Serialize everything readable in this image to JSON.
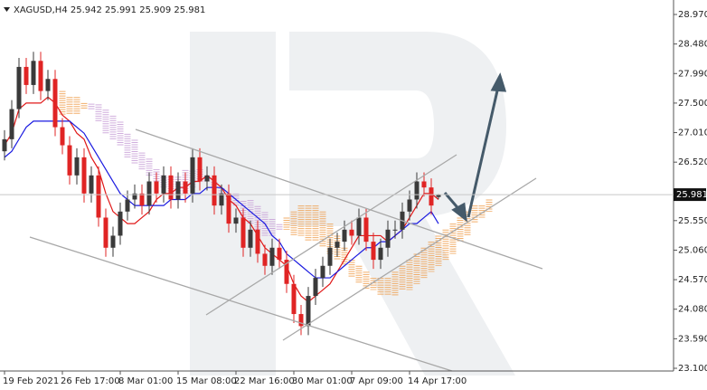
{
  "chart_data": {
    "type": "candlestick",
    "title": "XAGUSD,H4  25.942 25.991 25.909 25.981",
    "categories": [
      "19 Feb 2021",
      null,
      null,
      null,
      null,
      null,
      null,
      null,
      "26 Feb 17:00",
      null,
      null,
      null,
      null,
      null,
      null,
      null,
      "8 Mar 01:00",
      null,
      null,
      null,
      null,
      null,
      null,
      null,
      "15 Mar 08:00",
      null,
      null,
      null,
      null,
      null,
      null,
      null,
      "22 Mar 16:00",
      null,
      null,
      null,
      null,
      null,
      null,
      null,
      "30 Mar 01:00",
      null,
      null,
      null,
      null,
      null,
      null,
      null,
      "7 Apr 09:00",
      null,
      null,
      null,
      null,
      null,
      null,
      null,
      "14 Apr 17:00",
      null,
      null,
      null,
      null,
      null,
      null,
      null,
      null,
      null,
      null,
      null
    ],
    "open": [
      26.7,
      26.9,
      27.4,
      28.1,
      27.8,
      28.2,
      27.7,
      27.9,
      27.1,
      26.8,
      26.3,
      26.6,
      26.0,
      26.3,
      25.6,
      25.1,
      25.3,
      25.7,
      25.9,
      26.0,
      25.8,
      26.2,
      26.0,
      26.3,
      25.9,
      26.2,
      26.0,
      26.6,
      26.2,
      26.3,
      25.8,
      26.0,
      25.5,
      25.6,
      25.1,
      25.4,
      25.0,
      24.8,
      25.1,
      24.9,
      24.5,
      24.0,
      23.8,
      24.3,
      24.6,
      24.8,
      25.1,
      25.2,
      25.4,
      25.3,
      25.6,
      25.2,
      24.9,
      25.1,
      25.4,
      25.4,
      25.7,
      25.9,
      26.2,
      26.1,
      25.942,
      null,
      null,
      null,
      null,
      null,
      null,
      null
    ],
    "high": [
      27.05,
      27.55,
      28.25,
      28.25,
      28.35,
      28.35,
      28.05,
      28.05,
      27.25,
      26.95,
      26.75,
      26.75,
      26.45,
      26.45,
      25.75,
      25.45,
      25.85,
      26.05,
      26.15,
      26.15,
      26.35,
      26.35,
      26.45,
      26.45,
      26.35,
      26.35,
      26.75,
      26.75,
      26.45,
      26.45,
      26.15,
      26.15,
      25.75,
      25.75,
      25.55,
      25.55,
      25.15,
      25.25,
      25.25,
      25.05,
      24.65,
      24.15,
      24.45,
      24.75,
      24.95,
      25.25,
      25.35,
      25.55,
      25.55,
      25.75,
      25.75,
      25.35,
      25.25,
      25.55,
      25.55,
      25.85,
      26.05,
      26.35,
      26.35,
      26.25,
      25.991,
      null,
      null,
      null,
      null,
      null,
      null,
      null
    ],
    "low": [
      26.55,
      26.75,
      27.25,
      27.65,
      27.65,
      27.55,
      27.55,
      26.95,
      26.65,
      26.15,
      26.15,
      25.85,
      25.85,
      25.45,
      24.95,
      24.95,
      25.15,
      25.55,
      25.75,
      25.65,
      25.65,
      25.85,
      25.85,
      25.75,
      25.75,
      25.85,
      25.85,
      26.05,
      26.05,
      25.65,
      25.65,
      25.35,
      25.35,
      24.95,
      24.95,
      24.85,
      24.65,
      24.65,
      24.75,
      24.35,
      23.85,
      23.65,
      23.65,
      24.15,
      24.45,
      24.65,
      24.95,
      25.05,
      25.15,
      25.15,
      25.05,
      24.75,
      24.75,
      24.95,
      25.25,
      25.25,
      25.55,
      25.75,
      25.95,
      25.65,
      25.909,
      null,
      null,
      null,
      null,
      null,
      null,
      null
    ],
    "close": [
      26.9,
      27.4,
      28.1,
      27.8,
      28.2,
      27.7,
      27.9,
      27.1,
      26.8,
      26.3,
      26.6,
      26.0,
      26.3,
      25.6,
      25.1,
      25.3,
      25.7,
      25.9,
      26.0,
      25.8,
      26.2,
      26.0,
      26.3,
      25.9,
      26.2,
      26.0,
      26.6,
      26.2,
      26.3,
      25.8,
      26.0,
      25.5,
      25.6,
      25.1,
      25.4,
      25.0,
      24.8,
      25.1,
      24.9,
      24.5,
      24.0,
      23.8,
      24.3,
      24.6,
      24.8,
      25.1,
      25.2,
      25.4,
      25.3,
      25.6,
      25.2,
      24.9,
      25.1,
      25.4,
      25.4,
      25.7,
      25.9,
      26.2,
      26.1,
      25.8,
      25.981,
      null,
      null,
      null,
      null,
      null,
      null,
      null
    ],
    "up_color": "#3a3a3a",
    "down_color": "#e02424",
    "lines": [
      {
        "color": "#e01818",
        "values": [
          26.8,
          27.0,
          27.4,
          27.5,
          27.5,
          27.5,
          27.6,
          27.5,
          27.3,
          27.2,
          27.0,
          26.9,
          26.6,
          26.4,
          26.0,
          25.7,
          25.6,
          25.5,
          25.5,
          25.6,
          25.7,
          25.9,
          26.0,
          26.0,
          26.1,
          26.1,
          26.2,
          26.2,
          26.3,
          26.2,
          26.1,
          25.9,
          25.8,
          25.6,
          25.5,
          25.3,
          25.1,
          25.0,
          24.9,
          24.8,
          24.5,
          24.3,
          24.2,
          24.3,
          24.4,
          24.5,
          24.7,
          24.9,
          25.1,
          25.3,
          25.3,
          25.3,
          25.3,
          25.2,
          25.3,
          25.4,
          25.6,
          25.8,
          26.0,
          26.0,
          25.9,
          null,
          null,
          null,
          null,
          null,
          null,
          null
        ]
      },
      {
        "color": "#1a1ae0",
        "values": [
          26.6,
          26.7,
          26.9,
          27.1,
          27.2,
          27.2,
          27.2,
          27.2,
          27.2,
          27.2,
          27.1,
          27.0,
          26.8,
          26.6,
          26.4,
          26.2,
          26.0,
          25.9,
          25.8,
          25.8,
          25.8,
          25.8,
          25.8,
          25.9,
          25.9,
          25.9,
          26.0,
          26.0,
          26.1,
          26.1,
          26.1,
          26.0,
          25.9,
          25.8,
          25.7,
          25.6,
          25.5,
          25.3,
          25.2,
          25.0,
          24.9,
          24.8,
          24.7,
          24.6,
          24.6,
          24.6,
          24.7,
          24.8,
          24.9,
          25.0,
          25.1,
          25.1,
          25.2,
          25.2,
          25.3,
          25.4,
          25.5,
          25.5,
          25.6,
          25.7,
          25.5,
          null,
          null,
          null,
          null,
          null,
          null,
          null
        ]
      }
    ],
    "cloud": {
      "up_color": "#f0a050",
      "down_color": "#c8a0d8",
      "span_a": [
        null,
        null,
        null,
        null,
        null,
        null,
        null,
        null,
        27.7,
        27.6,
        27.6,
        27.5,
        27.4,
        27.2,
        27.0,
        26.9,
        26.8,
        26.6,
        26.5,
        26.4,
        26.3,
        26.2,
        26.1,
        26.0,
        26.0,
        26.0,
        26.1,
        26.2,
        26.2,
        26.1,
        26.0,
        25.9,
        25.8,
        25.6,
        25.5,
        25.4,
        25.3,
        25.3,
        25.4,
        25.6,
        25.7,
        25.8,
        25.8,
        25.8,
        25.7,
        25.5,
        25.3,
        25.1,
        24.9,
        24.8,
        24.7,
        24.6,
        24.6,
        24.6,
        24.7,
        24.8,
        24.9,
        25.0,
        25.1,
        25.2,
        25.3,
        25.4,
        25.5,
        25.6,
        25.7,
        25.8,
        25.8,
        25.9
      ],
      "span_b": [
        null,
        null,
        null,
        null,
        null,
        null,
        null,
        null,
        27.3,
        27.3,
        27.3,
        27.4,
        27.5,
        27.5,
        27.4,
        27.3,
        27.2,
        27.0,
        26.9,
        26.7,
        26.6,
        26.4,
        26.3,
        26.3,
        26.3,
        26.4,
        26.4,
        26.4,
        26.3,
        26.2,
        26.1,
        26.0,
        26.0,
        25.9,
        25.9,
        25.8,
        25.7,
        25.6,
        25.5,
        25.4,
        25.3,
        25.3,
        25.2,
        25.2,
        25.1,
        25.0,
        24.9,
        24.8,
        24.6,
        24.5,
        24.4,
        24.4,
        24.3,
        24.3,
        24.3,
        24.4,
        24.4,
        24.5,
        24.6,
        24.7,
        24.8,
        24.9,
        25.0,
        25.2,
        25.3,
        25.5,
        25.6,
        25.7
      ]
    },
    "ylim": [
      23.055,
      29.21
    ],
    "yticks": [
      {
        "value": 28.97,
        "label": "28.970"
      },
      {
        "value": 28.48,
        "label": "28.480"
      },
      {
        "value": 27.99,
        "label": "27.990"
      },
      {
        "value": 27.5,
        "label": "27.500"
      },
      {
        "value": 27.01,
        "label": "27.010"
      },
      {
        "value": 26.52,
        "label": "26.520"
      },
      {
        "value": 25.55,
        "label": "25.550"
      },
      {
        "value": 25.06,
        "label": "25.060"
      },
      {
        "value": 24.57,
        "label": "24.570"
      },
      {
        "value": 24.08,
        "label": "24.080"
      },
      {
        "value": 23.59,
        "label": "23.590"
      },
      {
        "value": 23.1,
        "label": "23.100"
      }
    ],
    "last_price": {
      "value": 25.981,
      "label": "25.981"
    },
    "grid": false
  }
}
